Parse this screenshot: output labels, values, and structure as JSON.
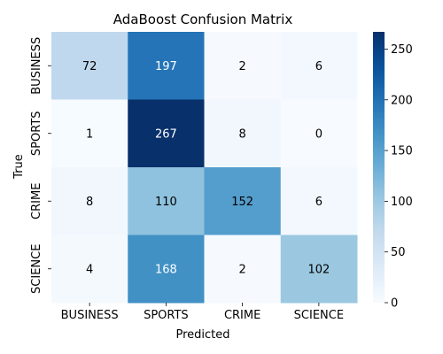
{
  "chart_data": {
    "type": "heatmap",
    "title": "AdaBoost Confusion Matrix",
    "xlabel": "Predicted",
    "ylabel": "True",
    "x_categories": [
      "BUSINESS",
      "SPORTS",
      "CRIME",
      "SCIENCE"
    ],
    "y_categories": [
      "BUSINESS",
      "SPORTS",
      "CRIME",
      "SCIENCE"
    ],
    "values": [
      [
        72,
        197,
        2,
        6
      ],
      [
        1,
        267,
        8,
        0
      ],
      [
        8,
        110,
        152,
        6
      ],
      [
        4,
        168,
        2,
        102
      ]
    ],
    "colormap": "Blues",
    "vmin": 0,
    "vmax": 267,
    "colorbar_ticks": [
      "0",
      "50",
      "100",
      "150",
      "200",
      "250"
    ]
  }
}
